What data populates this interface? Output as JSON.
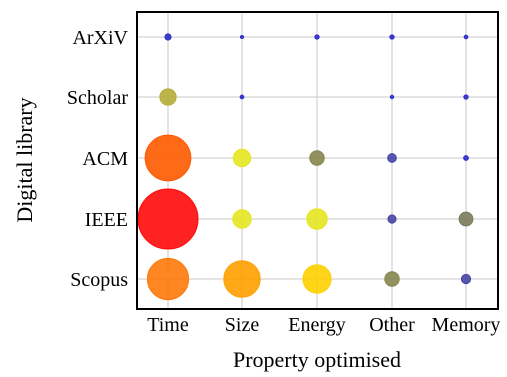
{
  "chart_data": {
    "type": "scatter",
    "xlabel": "Property optimised",
    "ylabel": "Digital library",
    "x_categories": [
      "Time",
      "Size",
      "Energy",
      "Other",
      "Memory"
    ],
    "y_categories": [
      "ArXiV",
      "Scholar",
      "ACM",
      "IEEE",
      "Scopus"
    ],
    "grid": true,
    "legend": "none",
    "points": [
      {
        "x": "Time",
        "y": "ArXiV",
        "value": 2,
        "color": "#2c2cc8"
      },
      {
        "x": "Size",
        "y": "ArXiV",
        "value": 0.5,
        "color": "#2c2cc8"
      },
      {
        "x": "Energy",
        "y": "ArXiV",
        "value": 1,
        "color": "#2c2cc8"
      },
      {
        "x": "Other",
        "y": "ArXiV",
        "value": 1,
        "color": "#2c2cc8"
      },
      {
        "x": "Memory",
        "y": "ArXiV",
        "value": 0.7,
        "color": "#2c2cc8"
      },
      {
        "x": "Time",
        "y": "Scholar",
        "value": 14,
        "color": "#b5ad38"
      },
      {
        "x": "Size",
        "y": "Scholar",
        "value": 0.7,
        "color": "#2c2cc8"
      },
      {
        "x": "Other",
        "y": "Scholar",
        "value": 0.6,
        "color": "#2c2cc8"
      },
      {
        "x": "Memory",
        "y": "Scholar",
        "value": 1,
        "color": "#2c2cc8"
      },
      {
        "x": "Time",
        "y": "ACM",
        "value": 110,
        "color": "#ff5a00"
      },
      {
        "x": "Size",
        "y": "ACM",
        "value": 16,
        "color": "#e6e620"
      },
      {
        "x": "Energy",
        "y": "ACM",
        "value": 11,
        "color": "#86864e"
      },
      {
        "x": "Other",
        "y": "ACM",
        "value": 4,
        "color": "#4646a6"
      },
      {
        "x": "Memory",
        "y": "ACM",
        "value": 1.2,
        "color": "#2c2cc8"
      },
      {
        "x": "Time",
        "y": "IEEE",
        "value": 190,
        "color": "#ff0a0a"
      },
      {
        "x": "Size",
        "y": "IEEE",
        "value": 18,
        "color": "#e6e620"
      },
      {
        "x": "Energy",
        "y": "IEEE",
        "value": 22,
        "color": "#e6e620"
      },
      {
        "x": "Other",
        "y": "IEEE",
        "value": 3.5,
        "color": "#4646a6"
      },
      {
        "x": "Memory",
        "y": "IEEE",
        "value": 10,
        "color": "#7a7a5a"
      },
      {
        "x": "Time",
        "y": "Scopus",
        "value": 90,
        "color": "#ff7a0a"
      },
      {
        "x": "Size",
        "y": "Scopus",
        "value": 70,
        "color": "#ffa000"
      },
      {
        "x": "Energy",
        "y": "Scopus",
        "value": 42,
        "color": "#ffd000"
      },
      {
        "x": "Other",
        "y": "Scopus",
        "value": 11,
        "color": "#86864e"
      },
      {
        "x": "Memory",
        "y": "Scopus",
        "value": 4.5,
        "color": "#4646a6"
      }
    ]
  }
}
